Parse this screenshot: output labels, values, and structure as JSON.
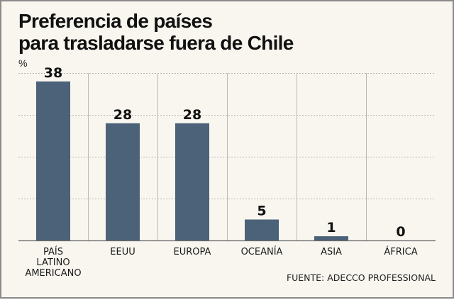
{
  "title_line1": "Preferencia de países",
  "title_line2": "para trasladarse fuera de Chile",
  "unit_label": "%",
  "source": "FUENTE: ADECCO PROFESSIONAL",
  "colors": {
    "bar": "#4c6278",
    "grid": "#b9b9b9",
    "axis": "#6b6b6b",
    "background": "#f8f6ef"
  },
  "chart_data": {
    "type": "bar",
    "categories": [
      [
        "PAÍS",
        "LATINO",
        "AMERICANO"
      ],
      [
        "EEUU"
      ],
      [
        "EUROPA"
      ],
      [
        "OCEANÍA"
      ],
      [
        "ASIA"
      ],
      [
        "ÁFRICA"
      ]
    ],
    "values": [
      38,
      28,
      28,
      5,
      1,
      0
    ],
    "data_labels": [
      "38",
      "28",
      "28",
      "5",
      "1",
      "0"
    ],
    "ylabel": "%",
    "ylim": [
      0,
      40
    ],
    "grid": true,
    "legend": "none"
  }
}
